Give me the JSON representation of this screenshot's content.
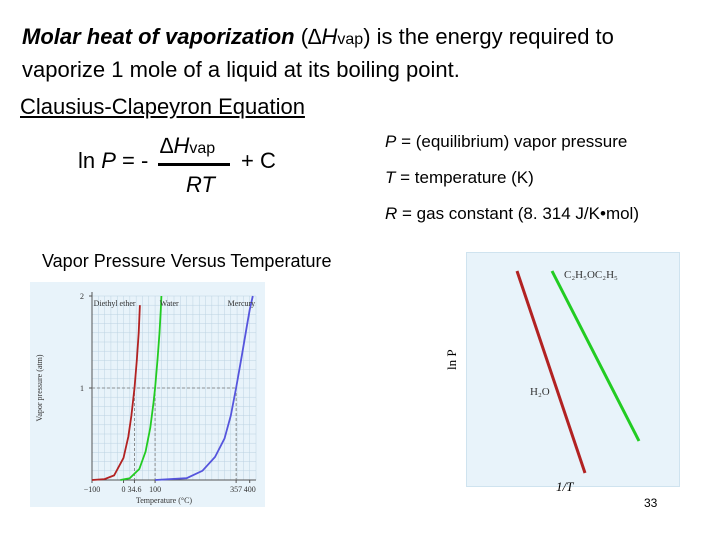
{
  "slide": {
    "intro": {
      "term": "Molar heat of vaporization",
      "paren_open": " (",
      "delta_h": "∆H",
      "vap_sub": "vap",
      "rest": ") is the energy required to vaporize 1 mole of a liquid at its boiling point."
    },
    "section_heading": "Clausius-Clapeyron Equation",
    "equation": {
      "lhs_ln": "ln ",
      "lhs_p": "P",
      "lhs_eq": " = -",
      "numerator_delta": "∆H",
      "numerator_sub": "vap",
      "denominator": "RT",
      "plus_c": "+ C"
    },
    "definitions": [
      {
        "sym": "P",
        "text": " = (equilibrium) vapor pressure"
      },
      {
        "sym": "T",
        "text": " = temperature (K)"
      },
      {
        "sym": "R",
        "text": " = gas constant (8. 314 J/K•mol)"
      }
    ],
    "chart_title": "Vapor Pressure Versus Temperature",
    "page_number": "33"
  },
  "colors": {
    "diethyl_ether": "#b22222",
    "water": "#22cc22",
    "mercury": "#5555dd",
    "chart_bg": "#e8f3fa",
    "grid": "#bcd3e2"
  },
  "chart_data": [
    {
      "type": "line",
      "title": "Vapor Pressure Versus Temperature",
      "xlabel": "Temperature (°C)",
      "ylabel": "Vapor pressure (atm)",
      "xlim": [
        -100,
        420
      ],
      "ylim": [
        0,
        2
      ],
      "x_ticks": [
        "−100",
        "0",
        "34.6",
        "100",
        "357",
        "400"
      ],
      "x_tick_values": [
        -100,
        0,
        34.6,
        100,
        357,
        400
      ],
      "y_ticks": [
        "1",
        "2"
      ],
      "y_tick_values": [
        1,
        2
      ],
      "series": [
        {
          "name": "Diethyl ether",
          "color_key": "diethyl_ether",
          "x": [
            -100,
            -60,
            -30,
            0,
            15,
            25,
            34.6,
            42,
            48,
            52
          ],
          "y": [
            0.0,
            0.01,
            0.05,
            0.24,
            0.47,
            0.7,
            1.0,
            1.3,
            1.6,
            1.9
          ]
        },
        {
          "name": "Water",
          "color_key": "water",
          "x": [
            -10,
            20,
            50,
            70,
            85,
            95,
            100,
            108,
            114,
            118,
            120
          ],
          "y": [
            0.0,
            0.02,
            0.12,
            0.31,
            0.57,
            0.84,
            1.0,
            1.32,
            1.6,
            1.85,
            2.0
          ]
        },
        {
          "name": "Mercury",
          "color_key": "mercury",
          "x": [
            100,
            200,
            250,
            290,
            320,
            340,
            357,
            375,
            390,
            400,
            410
          ],
          "y": [
            0.0,
            0.02,
            0.1,
            0.25,
            0.45,
            0.7,
            1.0,
            1.35,
            1.65,
            1.85,
            2.0
          ]
        }
      ]
    },
    {
      "type": "line",
      "title": "",
      "xlabel": "1/T",
      "ylabel": "ln P",
      "series": [
        {
          "name": "H₂O",
          "label_text": "H₂O",
          "color_key": "diethyl_ether",
          "x": [
            0.0,
            1.0
          ],
          "y": [
            1.0,
            0.0
          ]
        },
        {
          "name": "C₂H₅OC₂H₅",
          "label_text": "C₂H₅OC₂H₅",
          "color_key": "water",
          "x": [
            0.0,
            1.0
          ],
          "y": [
            1.0,
            0.0
          ]
        }
      ]
    }
  ]
}
